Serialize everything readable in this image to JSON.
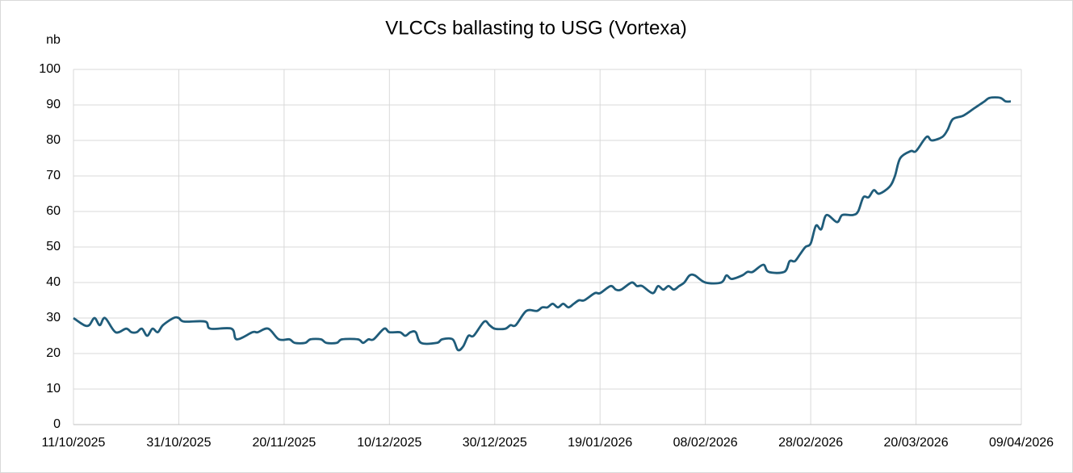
{
  "chart_data": {
    "type": "line",
    "title": "VLCCs ballasting to USG (Vortexa)",
    "y_label": "nb",
    "x": [
      "11/10/2025",
      "13/10/2025",
      "14/10/2025",
      "15/10/2025",
      "16/10/2025",
      "17/10/2025",
      "19/10/2025",
      "21/10/2025",
      "22/10/2025",
      "23/10/2025",
      "24/10/2025",
      "25/10/2025",
      "26/10/2025",
      "27/10/2025",
      "28/10/2025",
      "30/10/2025",
      "31/10/2025",
      "01/11/2025",
      "05/11/2025",
      "06/11/2025",
      "10/11/2025",
      "11/11/2025",
      "14/11/2025",
      "15/11/2025",
      "17/11/2025",
      "19/11/2025",
      "21/11/2025",
      "22/11/2025",
      "24/11/2025",
      "25/11/2025",
      "27/11/2025",
      "28/11/2025",
      "30/11/2025",
      "01/12/2025",
      "04/12/2025",
      "05/12/2025",
      "06/12/2025",
      "07/12/2025",
      "09/12/2025",
      "10/12/2025",
      "12/12/2025",
      "13/12/2025",
      "14/12/2025",
      "15/12/2025",
      "16/12/2025",
      "19/12/2025",
      "20/12/2025",
      "22/12/2025",
      "23/12/2025",
      "24/12/2025",
      "25/12/2025",
      "26/12/2025",
      "28/12/2025",
      "29/12/2025",
      "30/12/2025",
      "01/01/2026",
      "02/01/2026",
      "03/01/2026",
      "05/01/2026",
      "07/01/2026",
      "08/01/2026",
      "09/01/2026",
      "10/01/2026",
      "11/01/2026",
      "12/01/2026",
      "13/01/2026",
      "14/01/2026",
      "15/01/2026",
      "16/01/2026",
      "18/01/2026",
      "19/01/2026",
      "21/01/2026",
      "22/01/2026",
      "23/01/2026",
      "25/01/2026",
      "26/01/2026",
      "27/01/2026",
      "29/01/2026",
      "30/01/2026",
      "31/01/2026",
      "01/02/2026",
      "02/02/2026",
      "03/02/2026",
      "04/02/2026",
      "05/02/2026",
      "06/02/2026",
      "08/02/2026",
      "11/02/2026",
      "12/02/2026",
      "13/02/2026",
      "15/02/2026",
      "16/02/2026",
      "17/02/2026",
      "19/02/2026",
      "20/02/2026",
      "23/02/2026",
      "24/02/2026",
      "25/02/2026",
      "26/02/2026",
      "27/02/2026",
      "28/02/2026",
      "01/03/2026",
      "02/03/2026",
      "03/03/2026",
      "05/03/2026",
      "06/03/2026",
      "08/03/2026",
      "09/03/2026",
      "10/03/2026",
      "11/03/2026",
      "12/03/2026",
      "13/03/2026",
      "15/03/2026",
      "16/03/2026",
      "17/03/2026",
      "19/03/2026",
      "20/03/2026",
      "22/03/2026",
      "23/03/2026",
      "25/03/2026",
      "26/03/2026",
      "27/03/2026",
      "29/03/2026",
      "31/03/2026",
      "01/04/2026",
      "02/04/2026",
      "03/04/2026",
      "05/04/2026",
      "06/04/2026",
      "07/04/2026"
    ],
    "series": [
      {
        "name": "VLCCs ballasting to USG",
        "color": "#1f5c7a",
        "values": [
          30,
          28,
          28,
          30,
          28,
          30,
          26,
          27,
          26,
          26,
          27,
          25,
          27,
          26,
          28,
          30,
          30,
          29,
          29,
          27,
          27,
          24,
          26,
          26,
          27,
          24,
          24,
          23,
          23,
          24,
          24,
          23,
          23,
          24,
          24,
          23,
          24,
          24,
          27,
          26,
          26,
          25,
          26,
          26,
          23,
          23,
          24,
          24,
          21,
          22,
          25,
          25,
          29,
          28,
          27,
          27,
          28,
          28,
          32,
          32,
          33,
          33,
          34,
          33,
          34,
          33,
          34,
          35,
          35,
          37,
          37,
          39,
          38,
          38,
          40,
          39,
          39,
          37,
          39,
          38,
          39,
          38,
          39,
          40,
          42,
          42,
          40,
          40,
          42,
          41,
          42,
          43,
          43,
          45,
          43,
          43,
          46,
          46,
          48,
          50,
          51,
          56,
          55,
          59,
          57,
          59,
          59,
          60,
          64,
          64,
          66,
          65,
          67,
          70,
          75,
          77,
          77,
          81,
          80,
          81,
          83,
          86,
          87,
          89,
          90,
          91,
          92,
          92,
          91,
          91
        ]
      }
    ],
    "xlim": [
      "11/10/2025",
      "09/04/2026"
    ],
    "xticks": [
      "11/10/2025",
      "31/10/2025",
      "20/11/2025",
      "10/12/2025",
      "30/12/2025",
      "19/01/2026",
      "08/02/2026",
      "28/02/2026",
      "20/03/2026",
      "09/04/2026"
    ],
    "ylim": [
      0,
      100
    ],
    "yticks": [
      0,
      10,
      20,
      30,
      40,
      50,
      60,
      70,
      80,
      90,
      100
    ],
    "grid": true
  }
}
